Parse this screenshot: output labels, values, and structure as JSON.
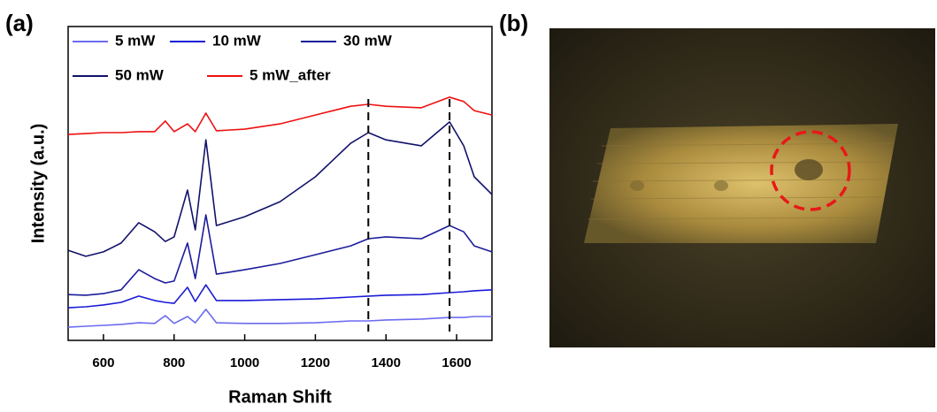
{
  "panel_labels": [
    "(a)",
    "(b)"
  ],
  "chart_data": {
    "type": "line",
    "x_label": "Raman Shift",
    "y_label": "Intensity (a.u.)",
    "x": [
      500,
      550,
      600,
      650,
      700,
      745,
      775,
      800,
      838,
      860,
      890,
      920,
      1000,
      1100,
      1200,
      1300,
      1350,
      1400,
      1500,
      1580,
      1620,
      1650,
      1700
    ],
    "series": [
      {
        "name": "5 mW",
        "color": "#6b6bf0",
        "values": [
          4.2,
          4.5,
          4.8,
          5.1,
          5.6,
          5.4,
          7.9,
          5.4,
          7.6,
          5.6,
          9.9,
          5.6,
          5.4,
          5.4,
          5.6,
          6.2,
          6.2,
          6.5,
          6.8,
          7.3,
          7.3,
          7.6,
          7.6
        ]
      },
      {
        "name": "10 mW",
        "color": "#1a1ad8",
        "values": [
          10.4,
          10.7,
          11.3,
          12.1,
          14.1,
          12.7,
          12.1,
          11.8,
          16.9,
          12.4,
          17.7,
          12.7,
          12.7,
          13.0,
          13.2,
          13.8,
          14.1,
          14.4,
          14.6,
          15.2,
          15.5,
          15.8,
          16.1
        ]
      },
      {
        "name": "30 mW",
        "color": "#1c1c9c",
        "values": [
          14.6,
          14.4,
          14.9,
          16.1,
          22.5,
          19.7,
          18.3,
          18.9,
          31.0,
          19.7,
          40.0,
          21.1,
          22.5,
          24.5,
          27.3,
          30.1,
          32.4,
          33.0,
          32.4,
          36.6,
          34.6,
          30.1,
          28.2
        ]
      },
      {
        "name": "50 mW",
        "color": "#12126a",
        "values": [
          28.7,
          26.8,
          28.2,
          31.0,
          37.5,
          34.6,
          31.5,
          33.0,
          47.9,
          35.2,
          63.9,
          36.6,
          39.4,
          44.2,
          52.1,
          62.8,
          66.2,
          63.9,
          62.0,
          69.6,
          62.0,
          52.1,
          46.5
        ]
      },
      {
        "name": "5 mW_after",
        "color": "#ee1111",
        "values": [
          65.6,
          65.9,
          66.2,
          66.2,
          66.5,
          66.5,
          69.9,
          66.5,
          69.0,
          66.5,
          72.4,
          66.8,
          67.3,
          69.0,
          71.8,
          74.6,
          75.2,
          74.6,
          74.1,
          77.5,
          76.1,
          73.2,
          71.8
        ]
      }
    ],
    "vlines": [
      1350,
      1580
    ],
    "xlim": [
      500,
      1700
    ],
    "ylim": [
      0,
      100
    ],
    "xticks": [
      600,
      800,
      1000,
      1200,
      1400,
      1600
    ]
  }
}
